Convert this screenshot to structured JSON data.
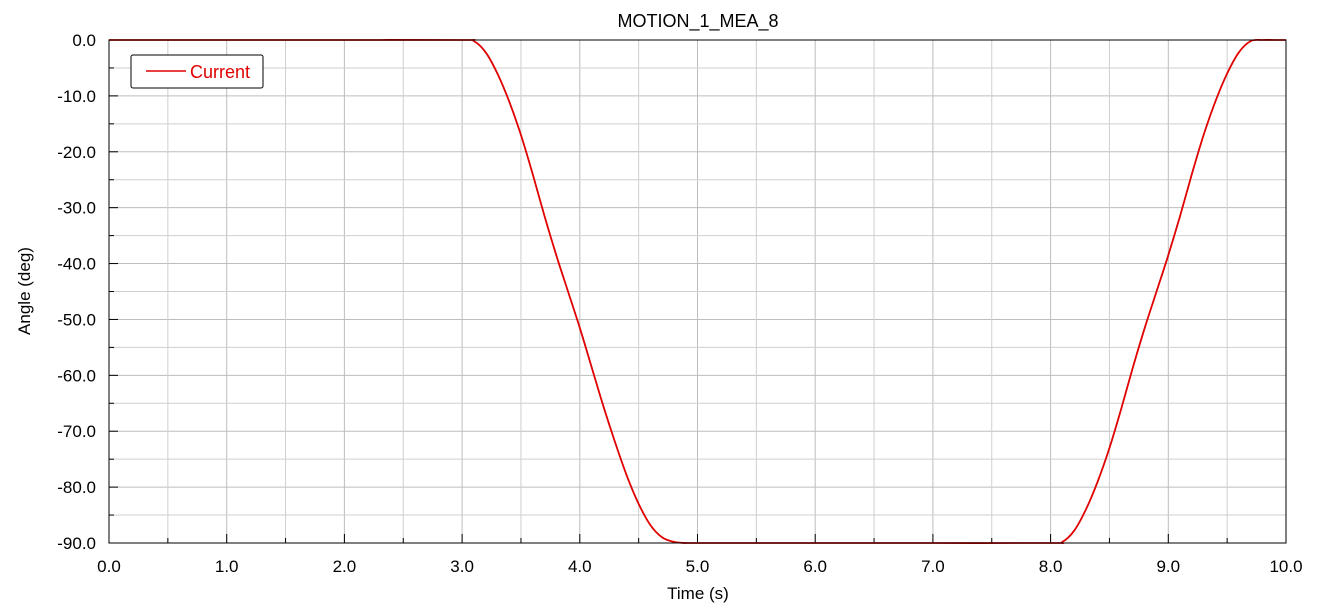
{
  "chart_data": {
    "type": "line",
    "title": "MOTION_1_MEA_8",
    "xlabel": "Time (s)",
    "ylabel": "Angle (deg)",
    "xlim": [
      0,
      10
    ],
    "ylim": [
      -90,
      0
    ],
    "x_ticks": [
      "0.0",
      "1.0",
      "2.0",
      "3.0",
      "4.0",
      "5.0",
      "6.0",
      "7.0",
      "8.0",
      "9.0",
      "10.0"
    ],
    "y_ticks": [
      "0.0",
      "-10.0",
      "-20.0",
      "-30.0",
      "-40.0",
      "-50.0",
      "-60.0",
      "-70.0",
      "-80.0",
      "-90.0"
    ],
    "grid": true,
    "legend_position": "top-left",
    "series": [
      {
        "name": "Current",
        "color": "#e00000",
        "x": [
          0,
          1,
          2,
          3,
          3.1,
          3.2,
          3.3,
          3.4,
          3.5,
          3.6,
          3.7,
          3.8,
          3.9,
          4.0,
          4.1,
          4.2,
          4.3,
          4.4,
          4.5,
          4.6,
          4.7,
          4.8,
          4.9,
          5.0,
          6,
          7,
          8,
          8.1,
          8.2,
          8.3,
          8.4,
          8.5,
          8.6,
          8.7,
          8.8,
          8.9,
          9.0,
          9.1,
          9.2,
          9.3,
          9.4,
          9.5,
          9.6,
          9.7,
          9.8,
          9.9,
          10.0
        ],
        "y": [
          0,
          0,
          0,
          0,
          -0.2,
          -2.2,
          -6.0,
          -11.0,
          -17.0,
          -24.0,
          -31.5,
          -38.5,
          -45.0,
          -51.5,
          -58.5,
          -65.5,
          -72.0,
          -78.0,
          -83.0,
          -86.8,
          -89.0,
          -89.8,
          -90,
          -90,
          -90,
          -90,
          -90,
          -89.8,
          -87.8,
          -84.0,
          -79.0,
          -73.0,
          -66.0,
          -58.5,
          -51.5,
          -45.0,
          -38.5,
          -31.5,
          -24.0,
          -17.0,
          -11.0,
          -6.0,
          -2.2,
          -0.2,
          0,
          0,
          0
        ]
      }
    ]
  }
}
